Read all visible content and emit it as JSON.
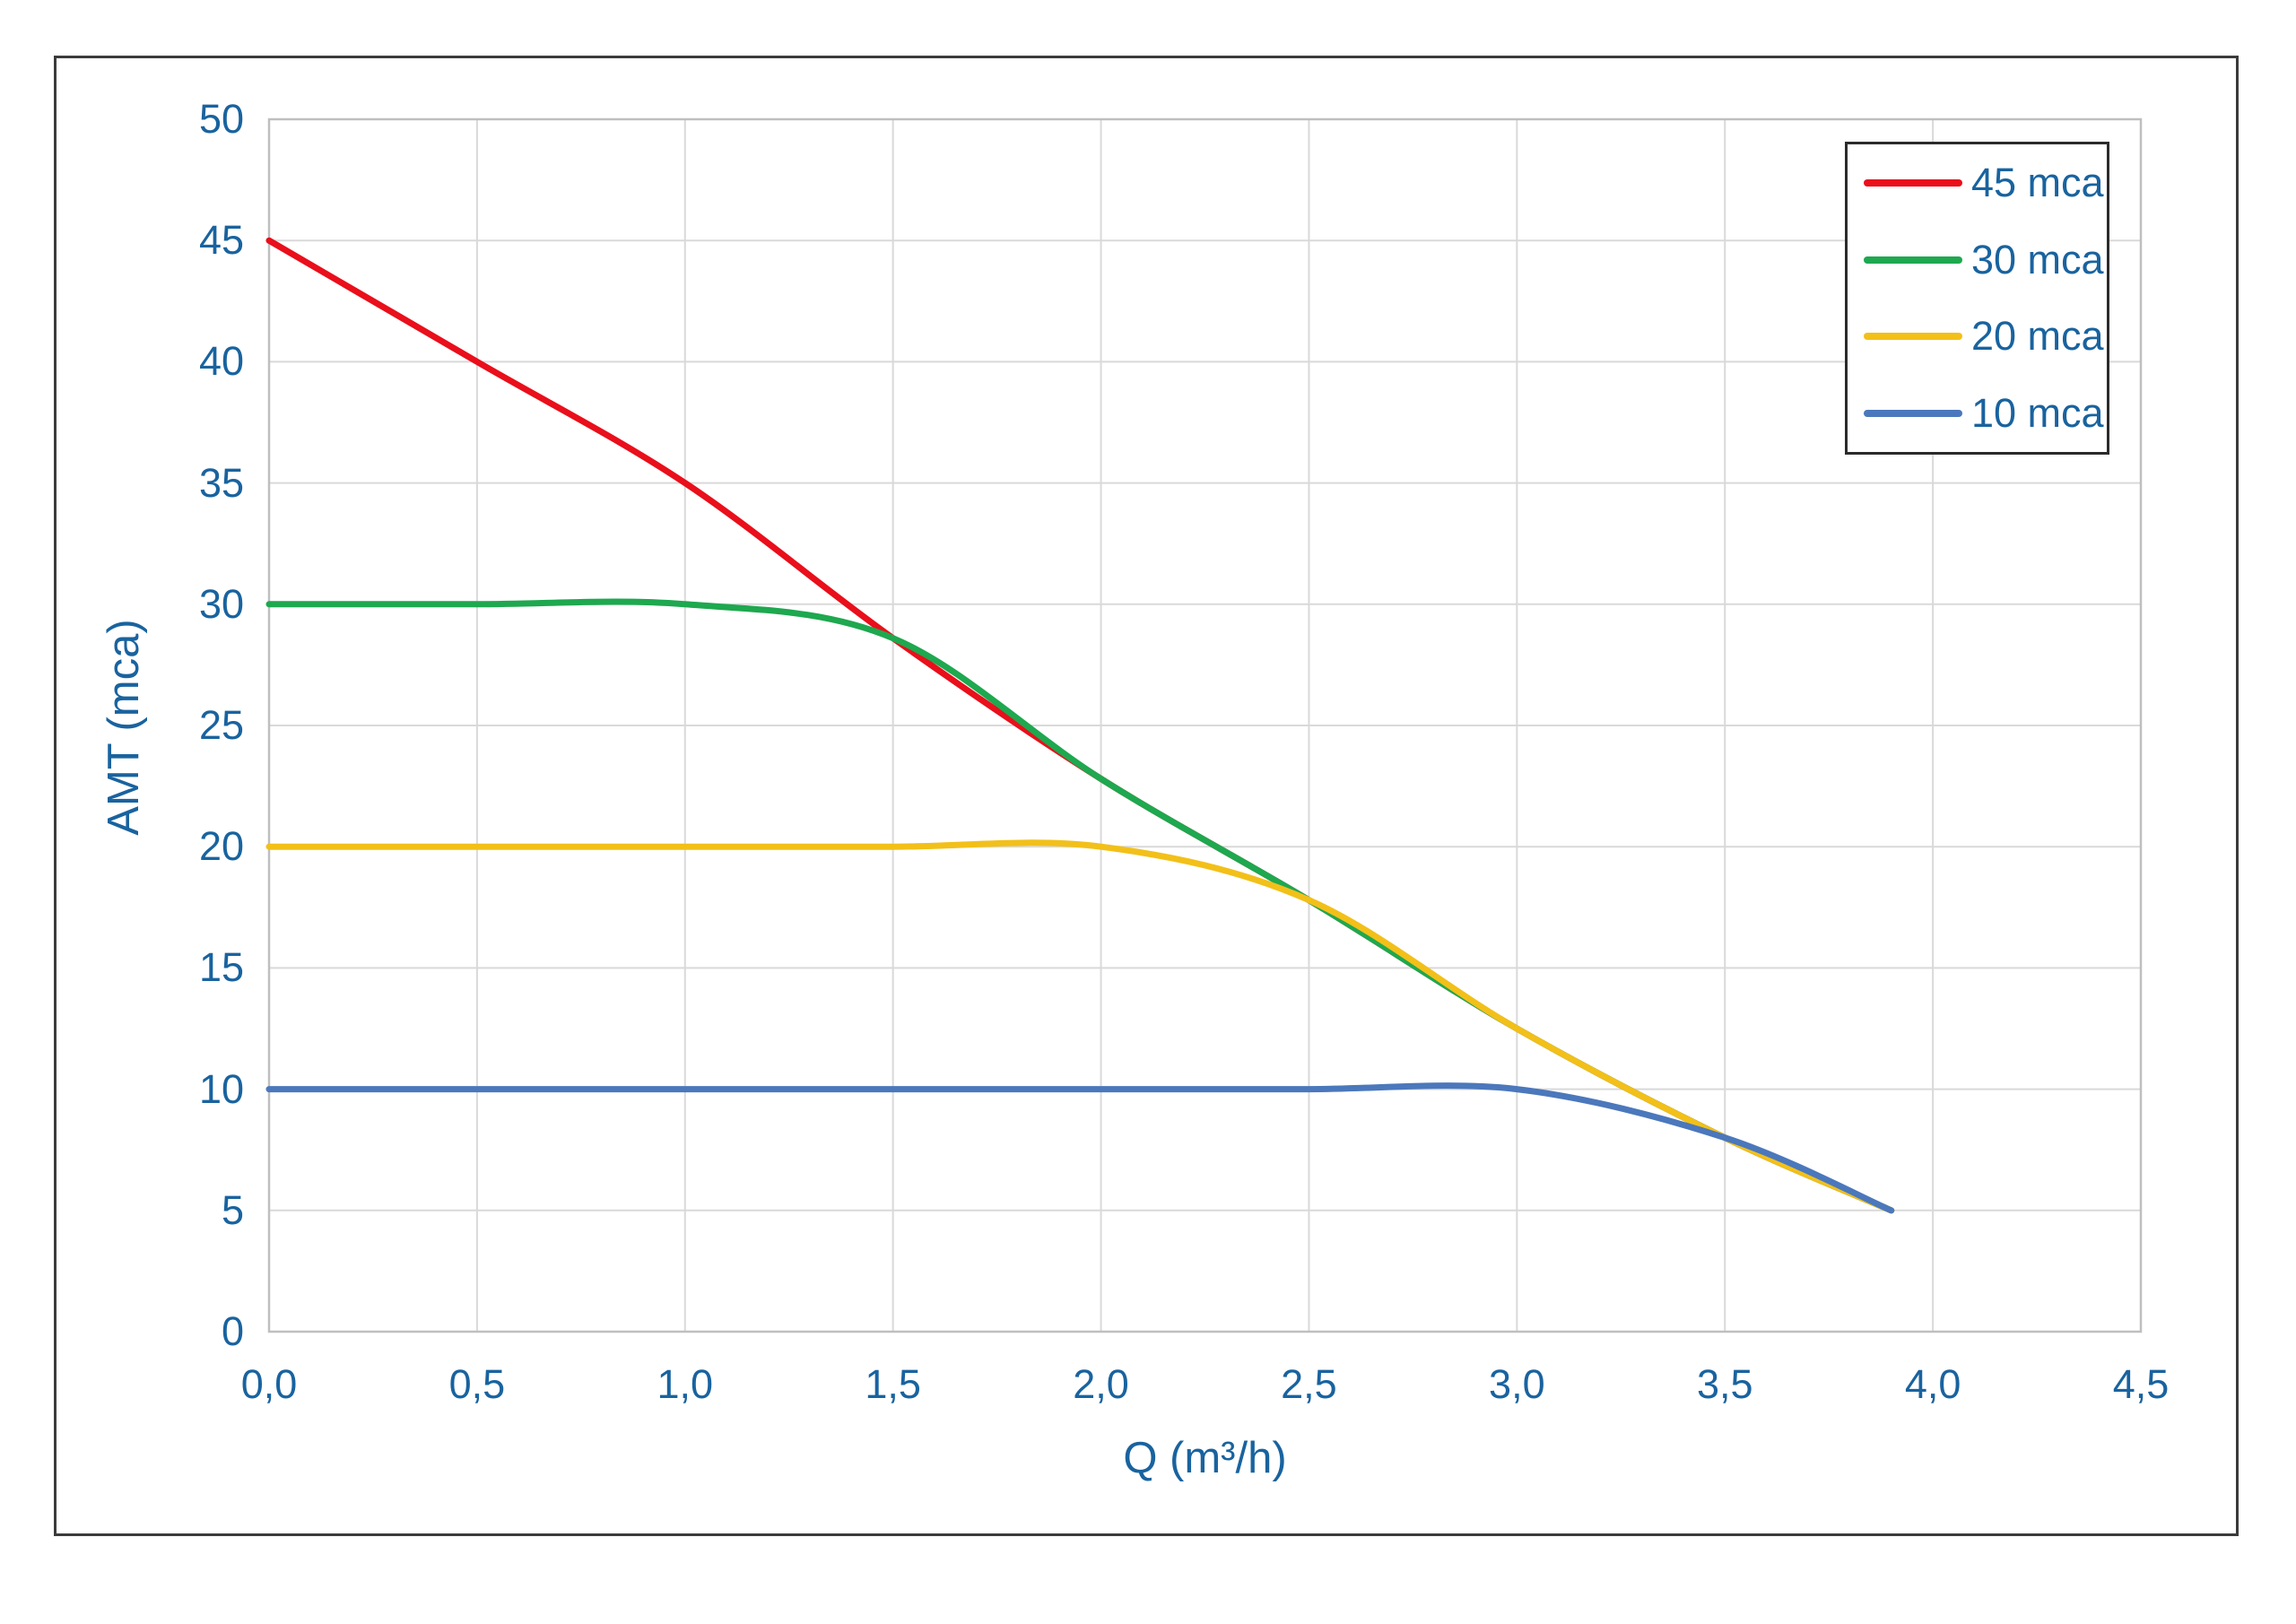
{
  "figure": {
    "background": "#FFFFFF",
    "frame_color": "#3B3B3B",
    "text_color": "#19639F"
  },
  "chart_data": {
    "type": "line",
    "title": "",
    "xlabel": "Q (m³/h)",
    "ylabel": "AMT (mca)",
    "xlim": [
      0,
      4.5
    ],
    "ylim": [
      0,
      50
    ],
    "grid": true,
    "grid_color": "#D9D9D9",
    "plot_border_color": "#BFBFBF",
    "x_ticks": [
      {
        "v": 0.0,
        "label": "0,0"
      },
      {
        "v": 0.5,
        "label": "0,5"
      },
      {
        "v": 1.0,
        "label": "1,0"
      },
      {
        "v": 1.5,
        "label": "1,5"
      },
      {
        "v": 2.0,
        "label": "2,0"
      },
      {
        "v": 2.5,
        "label": "2,5"
      },
      {
        "v": 3.0,
        "label": "3,0"
      },
      {
        "v": 3.5,
        "label": "3,5"
      },
      {
        "v": 4.0,
        "label": "4,0"
      },
      {
        "v": 4.5,
        "label": "4,5"
      }
    ],
    "y_ticks": [
      {
        "v": 0,
        "label": "0"
      },
      {
        "v": 5,
        "label": "5"
      },
      {
        "v": 10,
        "label": "10"
      },
      {
        "v": 15,
        "label": "15"
      },
      {
        "v": 20,
        "label": "20"
      },
      {
        "v": 25,
        "label": "25"
      },
      {
        "v": 30,
        "label": "30"
      },
      {
        "v": 35,
        "label": "35"
      },
      {
        "v": 40,
        "label": "40"
      },
      {
        "v": 45,
        "label": "45"
      },
      {
        "v": 50,
        "label": "50"
      }
    ],
    "legend_position": "top-right",
    "series": [
      {
        "name": "45 mca",
        "color": "#E90F1B",
        "points": [
          [
            0,
            45
          ],
          [
            0.5,
            40
          ],
          [
            1.0,
            35
          ],
          [
            1.5,
            28.6
          ],
          [
            2.0,
            22.8
          ],
          [
            2.5,
            17.8
          ],
          [
            3.0,
            12.5
          ],
          [
            3.5,
            8.0
          ],
          [
            3.9,
            5.0
          ]
        ]
      },
      {
        "name": "30 mca",
        "color": "#1EA84F",
        "points": [
          [
            0,
            30
          ],
          [
            0.5,
            30
          ],
          [
            1.0,
            30
          ],
          [
            1.5,
            28.6
          ],
          [
            2.0,
            22.8
          ],
          [
            2.5,
            17.8
          ],
          [
            3.0,
            12.5
          ],
          [
            3.5,
            8.0
          ],
          [
            3.9,
            5.0
          ]
        ]
      },
      {
        "name": "20 mca",
        "color": "#F2C019",
        "points": [
          [
            0,
            20
          ],
          [
            0.5,
            20
          ],
          [
            1.0,
            20
          ],
          [
            1.5,
            20
          ],
          [
            2.0,
            20
          ],
          [
            2.5,
            17.8
          ],
          [
            3.0,
            12.5
          ],
          [
            3.5,
            8.0
          ],
          [
            3.9,
            5.0
          ]
        ]
      },
      {
        "name": "10 mca",
        "color": "#4B78BC",
        "points": [
          [
            0,
            10
          ],
          [
            0.5,
            10
          ],
          [
            1.0,
            10
          ],
          [
            1.5,
            10
          ],
          [
            2.0,
            10
          ],
          [
            2.5,
            10
          ],
          [
            3.0,
            10
          ],
          [
            3.5,
            8.0
          ],
          [
            3.9,
            5.0
          ]
        ]
      }
    ]
  }
}
